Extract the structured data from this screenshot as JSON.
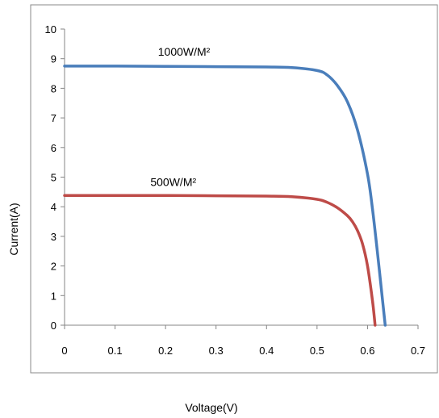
{
  "chart_data": {
    "type": "line",
    "title": "",
    "xlabel": "Voltage(V)",
    "ylabel": "Current(A)",
    "xlim": [
      0,
      0.7
    ],
    "ylim": [
      0,
      10
    ],
    "xticks": [
      "0",
      "0.1",
      "0.2",
      "0.3",
      "0.4",
      "0.5",
      "0.6",
      "0.7"
    ],
    "yticks": [
      "0",
      "1",
      "2",
      "3",
      "4",
      "5",
      "6",
      "7",
      "8",
      "9",
      "10"
    ],
    "grid": false,
    "legend": "none",
    "series": [
      {
        "color": "#4a7ebb",
        "x": [
          0,
          0.1,
          0.2,
          0.3,
          0.4,
          0.45,
          0.5,
          0.52,
          0.54,
          0.56,
          0.58,
          0.6,
          0.61,
          0.62,
          0.63,
          0.635
        ],
        "y": [
          8.75,
          8.75,
          8.74,
          8.73,
          8.72,
          8.7,
          8.6,
          8.45,
          8.1,
          7.55,
          6.6,
          5.1,
          3.9,
          2.4,
          0.8,
          0
        ]
      },
      {
        "color": "#be4b48",
        "x": [
          0,
          0.1,
          0.2,
          0.3,
          0.4,
          0.45,
          0.5,
          0.52,
          0.54,
          0.56,
          0.57,
          0.58,
          0.59,
          0.6,
          0.61,
          0.615
        ],
        "y": [
          4.38,
          4.38,
          4.38,
          4.37,
          4.36,
          4.34,
          4.25,
          4.15,
          3.97,
          3.7,
          3.5,
          3.2,
          2.75,
          2.0,
          0.8,
          0
        ]
      }
    ],
    "annotations": [
      {
        "text": "1000W/M²",
        "x": 0.185,
        "y": 9.1
      },
      {
        "text": "500W/M²",
        "x": 0.17,
        "y": 4.7
      }
    ]
  }
}
